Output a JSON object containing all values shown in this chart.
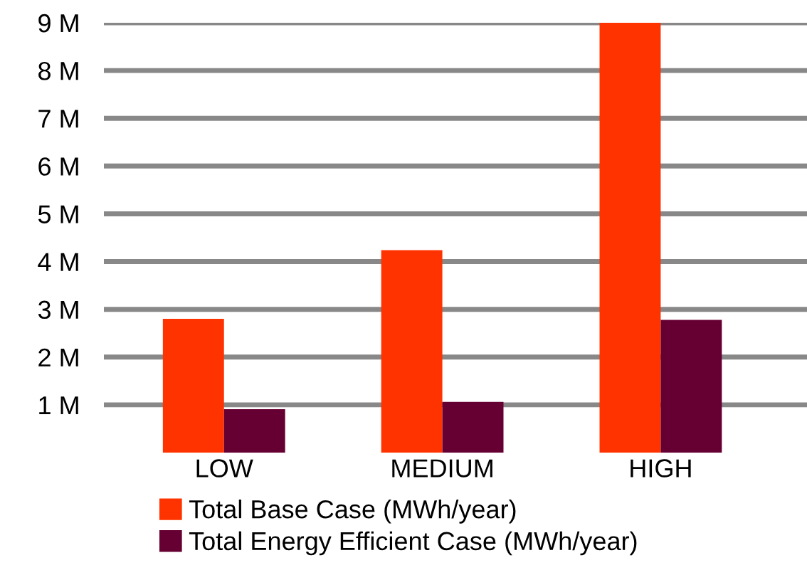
{
  "chart_data": {
    "type": "bar",
    "categories": [
      "LOW",
      "MEDIUM",
      "HIGH"
    ],
    "series": [
      {
        "name": "Total Base Case (MWh/year)",
        "color": "#ff3300",
        "values": [
          2800000,
          4240000,
          9000000
        ]
      },
      {
        "name": "Total Energy Efficient Case (MWh/year)",
        "color": "#660033",
        "values": [
          910000,
          1060000,
          2780000
        ]
      }
    ],
    "ylim": [
      0,
      9000000
    ],
    "yticks": [
      {
        "value": 1000000,
        "label": "1 M"
      },
      {
        "value": 2000000,
        "label": "2 M"
      },
      {
        "value": 3000000,
        "label": "3 M"
      },
      {
        "value": 4000000,
        "label": "4 M"
      },
      {
        "value": 5000000,
        "label": "5 M"
      },
      {
        "value": 6000000,
        "label": "6 M"
      },
      {
        "value": 7000000,
        "label": "7 M"
      },
      {
        "value": 8000000,
        "label": "8 M"
      },
      {
        "value": 9000000,
        "label": "9 M"
      }
    ],
    "grid": "y",
    "legend": "bottom"
  }
}
